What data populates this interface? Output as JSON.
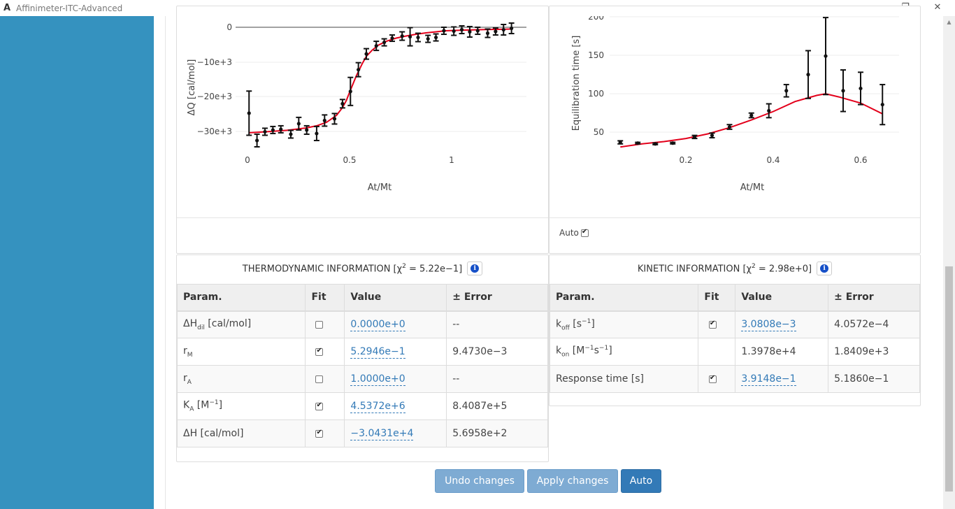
{
  "window": {
    "logo": "A",
    "title": "Affinimeter-ITC-Advanced",
    "minimize": "—",
    "maximize": "❐",
    "close": "✕"
  },
  "thermo_plot": {
    "y_ticks": [
      "0",
      "−10e+3",
      "−20e+3",
      "−30e+3"
    ],
    "x_ticks": [
      "0",
      "0.5",
      "1"
    ],
    "ylabel": "ΔQ  [cal/mol]",
    "xlabel": "At/Mt"
  },
  "kinetic_plot": {
    "y_ticks": [
      "200",
      "150",
      "100",
      "50"
    ],
    "x_ticks": [
      "0.2",
      "0.4",
      "0.6"
    ],
    "ylabel": "Equilibration time  [s]",
    "xlabel": "At/Mt",
    "auto_label": "Auto",
    "auto_checked": true
  },
  "chart_data": [
    {
      "type": "scatter",
      "xlabel": "At/Mt",
      "ylabel": "ΔQ  [cal/mol]",
      "xlim": [
        -0.04,
        1.37
      ],
      "ylim": [
        -34000,
        500
      ],
      "series": [
        {
          "x": [
            0.01,
            0.05,
            0.09,
            0.13,
            0.17,
            0.22,
            0.26,
            0.3,
            0.35,
            0.39,
            0.44,
            0.48,
            0.52,
            0.56,
            0.6,
            0.65,
            0.69,
            0.73,
            0.78,
            0.82,
            0.86,
            0.91,
            0.95,
            0.99,
            1.04,
            1.08,
            1.12,
            1.16,
            1.21,
            1.25,
            1.29,
            1.33
          ],
          "y": [
            -24200,
            -32000,
            -29500,
            -29000,
            -28800,
            -30200,
            -27200,
            -29000,
            -30000,
            -26300,
            -25800,
            -21500,
            -18000,
            -11800,
            -7300,
            -5000,
            -4000,
            -2800,
            -2200,
            -2400,
            -2600,
            -3000,
            -2600,
            -700,
            -800,
            -400,
            -1000,
            -700,
            -1400,
            -900,
            -400,
            0
          ],
          "err": [
            6300,
            1800,
            1000,
            1000,
            1000,
            1100,
            1800,
            1200,
            2000,
            1600,
            1500,
            1200,
            4000,
            2000,
            1500,
            1300,
            1000,
            900,
            1200,
            2600,
            1200,
            1000,
            1000,
            1000,
            1200,
            1100,
            1500,
            1000,
            1200,
            1000,
            1500,
            1500
          ]
        },
        {
          "name": "fit",
          "x": [
            0.01,
            0.1,
            0.2,
            0.3,
            0.35,
            0.4,
            0.45,
            0.48,
            0.5,
            0.52,
            0.55,
            0.58,
            0.6,
            0.63,
            0.66,
            0.7,
            0.75,
            0.8,
            0.85,
            0.9,
            0.95,
            1.0,
            1.1,
            1.2,
            1.3,
            1.33
          ],
          "y": [
            -29800,
            -29500,
            -29100,
            -28400,
            -27800,
            -26800,
            -24800,
            -22600,
            -20500,
            -17600,
            -13500,
            -10000,
            -8000,
            -6200,
            -4800,
            -3700,
            -2800,
            -2200,
            -1700,
            -1300,
            -1000,
            -700,
            -500,
            -350,
            -250,
            -200
          ]
        }
      ]
    },
    {
      "type": "scatter",
      "xlabel": "At/Mt",
      "ylabel": "Equilibration time  [s]",
      "xlim": [
        0.04,
        0.68
      ],
      "ylim": [
        23,
        200
      ],
      "series": [
        {
          "x": [
            0.05,
            0.09,
            0.13,
            0.17,
            0.22,
            0.26,
            0.3,
            0.35,
            0.39,
            0.43,
            0.48,
            0.52,
            0.56,
            0.6,
            0.65
          ],
          "y": [
            37,
            36,
            35,
            36,
            44,
            46,
            57,
            72,
            78,
            104,
            125,
            149,
            104,
            107,
            86
          ],
          "err": [
            2,
            1,
            1,
            1,
            2,
            3,
            3,
            3,
            9,
            8,
            31,
            50,
            27,
            21,
            26
          ]
        },
        {
          "name": "fit",
          "x": [
            0.05,
            0.1,
            0.15,
            0.2,
            0.25,
            0.3,
            0.35,
            0.4,
            0.45,
            0.5,
            0.52,
            0.55,
            0.6,
            0.65
          ],
          "y": [
            31,
            35,
            38,
            42,
            48,
            56,
            66,
            77,
            90,
            98,
            100,
            96,
            88,
            74
          ]
        }
      ]
    }
  ],
  "thermo_table": {
    "heading_prefix": "THERMODYNAMIC INFORMATION [χ",
    "heading_sup": "2",
    "heading_suffix": " = 5.22e−1]",
    "headers": [
      "Param.",
      "Fit",
      "Value",
      "± Error"
    ],
    "rows": [
      {
        "p_main": "ΔH",
        "p_sub": "dil",
        "p_sup": "",
        "p_unit": " [cal/mol]",
        "fit": false,
        "value": "0.0000e+0",
        "error": "--"
      },
      {
        "p_main": "r",
        "p_sub": "M",
        "p_sup": "",
        "p_unit": "",
        "fit": true,
        "value": "5.2946e−1",
        "error": "9.4730e−3"
      },
      {
        "p_main": "r",
        "p_sub": "A",
        "p_sup": "",
        "p_unit": "",
        "fit": false,
        "value": "1.0000e+0",
        "error": "--"
      },
      {
        "p_main": "K",
        "p_sub": "A",
        "p_sup": "−1",
        "p_unit": " [M",
        "p_close": "]",
        "fit": true,
        "value": "4.5372e+6",
        "error": "8.4087e+5"
      },
      {
        "p_main": "ΔH [cal/mol]",
        "p_sub": "",
        "p_sup": "",
        "p_unit": "",
        "fit": true,
        "value": "−3.0431e+4",
        "error": "5.6958e+2"
      }
    ]
  },
  "kinetic_table": {
    "heading_prefix": "KINETIC INFORMATION [χ",
    "heading_sup": "2",
    "heading_suffix": " = 2.98e+0]",
    "headers": [
      "Param.",
      "Fit",
      "Value",
      "± Error"
    ],
    "rows": [
      {
        "label_html": "k<sub>off</sub> [s<sup>−1</sup>]",
        "fit": true,
        "fit_shown": true,
        "value": "3.0808e−3",
        "editable": true,
        "error": "4.0572e−4"
      },
      {
        "label_html": "k<sub>on</sub> [M<sup>−1</sup>s<sup>−1</sup>]",
        "fit": false,
        "fit_shown": false,
        "value": "1.3978e+4",
        "editable": false,
        "error": "1.8409e+3"
      },
      {
        "label_html": "Response time [s]",
        "fit": true,
        "fit_shown": true,
        "value": "3.9148e−1",
        "editable": true,
        "error": "5.1860e−1"
      }
    ]
  },
  "buttons": {
    "undo": "Undo changes",
    "apply": "Apply changes",
    "auto": "Auto"
  },
  "colors": {
    "sidebar": "#3592bf",
    "fit_line": "#e3001b",
    "button_primary": "#337ab7"
  }
}
